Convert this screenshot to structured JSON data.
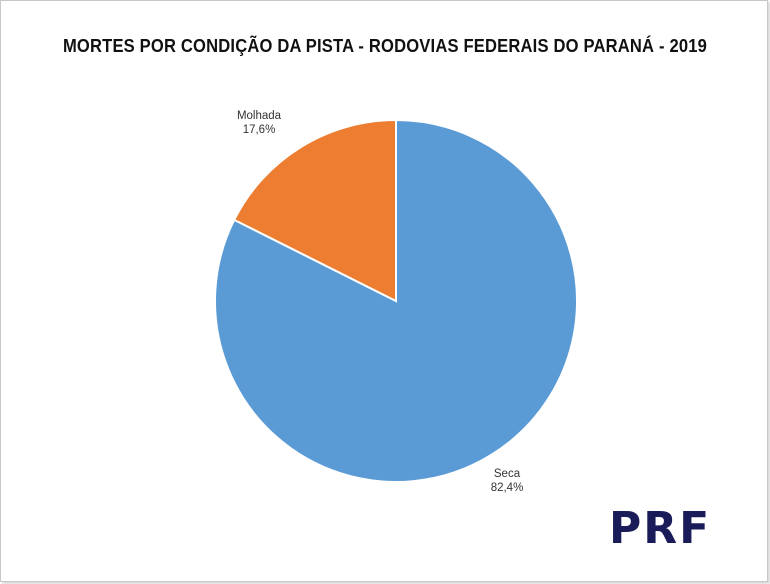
{
  "chart_data": {
    "type": "pie",
    "title": "MORTES POR CONDIÇÃO DA PISTA - RODOVIAS FEDERAIS DO PARANÁ - 2019",
    "slices": [
      {
        "label": "Seca",
        "value": 82.4,
        "value_label": "82,4%",
        "color": "#5b9bd5"
      },
      {
        "label": "Molhada",
        "value": 17.6,
        "value_label": "17,6%",
        "color": "#ed7d31"
      }
    ],
    "start": "12 o'clock",
    "direction": "clockwise",
    "legend": "none",
    "labels": "outside"
  },
  "logo": {
    "text": "PRF"
  }
}
